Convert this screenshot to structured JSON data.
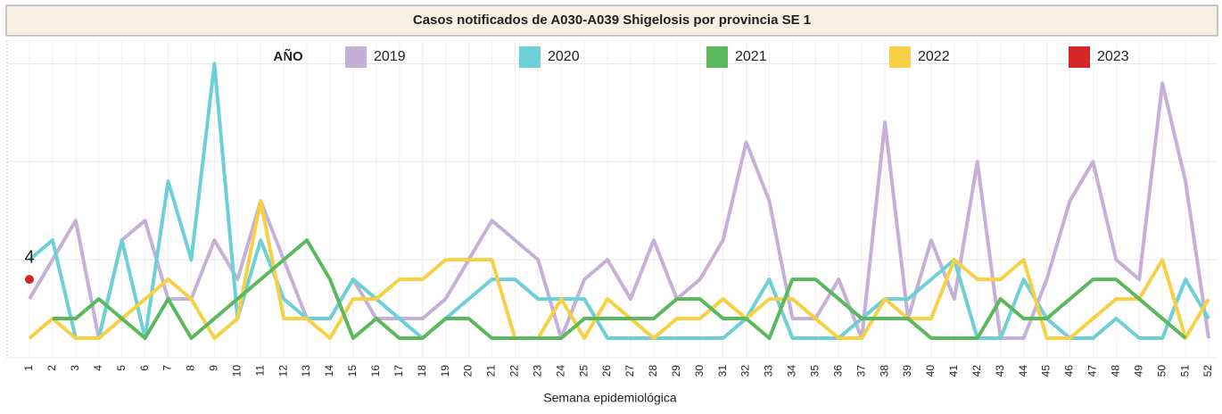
{
  "chart_data": {
    "type": "line",
    "title": "Casos notificados de A030-A039 Shigelosis por provincia SE 1",
    "x_label": "Semana epidemiológica",
    "legend_title": "AÑO",
    "categories": [
      "1",
      "2",
      "3",
      "4",
      "5",
      "6",
      "7",
      "8",
      "9",
      "10",
      "11",
      "12",
      "13",
      "14",
      "15",
      "16",
      "17",
      "18",
      "19",
      "20",
      "21",
      "22",
      "23",
      "24",
      "25",
      "26",
      "27",
      "28",
      "29",
      "30",
      "31",
      "32",
      "33",
      "34",
      "35",
      "36",
      "37",
      "38",
      "39",
      "40",
      "41",
      "42",
      "43",
      "44",
      "45",
      "46",
      "47",
      "48",
      "49",
      "50",
      "51",
      "52"
    ],
    "ylim": [
      0,
      16.2
    ],
    "yticks": [
      0,
      5,
      10,
      15
    ],
    "grid": true,
    "series": [
      {
        "name": "2019",
        "color": "#c5b0d9",
        "values": [
          3,
          5,
          7,
          1,
          6,
          7,
          3,
          3,
          6,
          4,
          8,
          5,
          2,
          2,
          4,
          2,
          2,
          2,
          3,
          5,
          7,
          6,
          5,
          1,
          4,
          5,
          3,
          6,
          3,
          4,
          6,
          11,
          8,
          2,
          2,
          4,
          1,
          12,
          2,
          6,
          3,
          10,
          1,
          1,
          4,
          8,
          10,
          5,
          4,
          14,
          9,
          1
        ]
      },
      {
        "name": "2020",
        "color": "#6dcfd8",
        "values": [
          5,
          6,
          1,
          1,
          6,
          1,
          9,
          5,
          15,
          2,
          6,
          3,
          2,
          2,
          4,
          3,
          2,
          1,
          2,
          3,
          4,
          4,
          3,
          3,
          3,
          1,
          1,
          1,
          1,
          1,
          1,
          2,
          4,
          1,
          1,
          1,
          2,
          3,
          3,
          4,
          5,
          1,
          1,
          4,
          2,
          1,
          1,
          2,
          1,
          1,
          4,
          2
        ]
      },
      {
        "name": "2021",
        "color": "#5cb85c",
        "values": [
          null,
          2,
          2,
          3,
          2,
          1,
          3,
          1,
          2,
          3,
          4,
          5,
          6,
          4,
          1,
          2,
          1,
          1,
          2,
          2,
          1,
          1,
          1,
          1,
          2,
          2,
          2,
          2,
          3,
          3,
          2,
          2,
          1,
          4,
          4,
          3,
          2,
          2,
          2,
          1,
          1,
          1,
          3,
          2,
          2,
          3,
          4,
          4,
          3,
          2,
          1,
          null
        ]
      },
      {
        "name": "2022",
        "color": "#f7d043",
        "values": [
          1,
          2,
          1,
          1,
          2,
          3,
          4,
          3,
          1,
          2,
          8,
          2,
          2,
          1,
          3,
          3,
          4,
          4,
          5,
          5,
          5,
          1,
          1,
          3,
          1,
          3,
          2,
          1,
          2,
          2,
          3,
          2,
          3,
          3,
          2,
          1,
          1,
          3,
          2,
          2,
          5,
          4,
          4,
          5,
          1,
          1,
          2,
          3,
          3,
          5,
          1,
          3
        ]
      },
      {
        "name": "2023",
        "color": "#d62728",
        "values": [
          4,
          null,
          null,
          null,
          null,
          null,
          null,
          null,
          null,
          null,
          null,
          null,
          null,
          null,
          null,
          null,
          null,
          null,
          null,
          null,
          null,
          null,
          null,
          null,
          null,
          null,
          null,
          null,
          null,
          null,
          null,
          null,
          null,
          null,
          null,
          null,
          null,
          null,
          null,
          null,
          null,
          null,
          null,
          null,
          null,
          null,
          null,
          null,
          null,
          null,
          null,
          null
        ],
        "value_labels": [
          "4"
        ]
      }
    ]
  }
}
